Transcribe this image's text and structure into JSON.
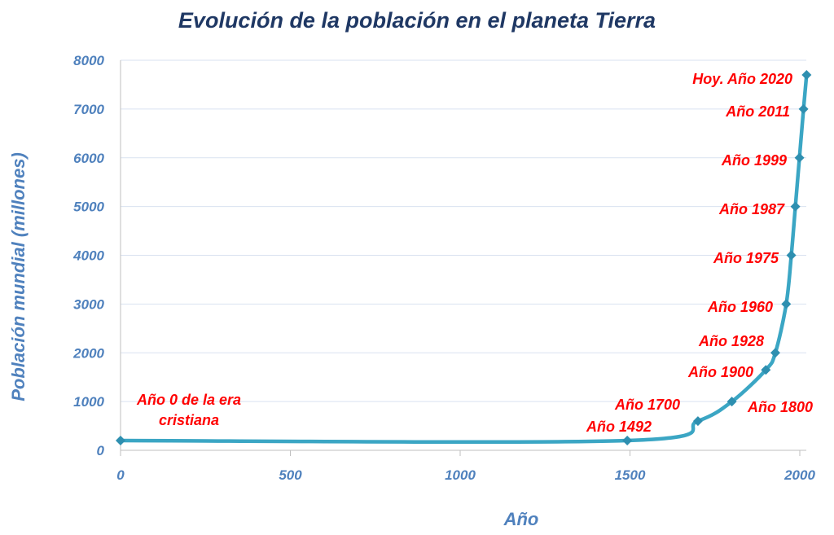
{
  "chart_data": {
    "type": "line",
    "title": "Evolución de la población en el planeta Tierra",
    "xlabel": "Año",
    "ylabel": "Población mundial (millones)",
    "xlim": [
      0,
      2000
    ],
    "ylim": [
      0,
      8000
    ],
    "xticks": [
      "0",
      "500",
      "1000",
      "1500",
      "2000"
    ],
    "yticks": [
      "0",
      "1000",
      "2000",
      "3000",
      "4000",
      "5000",
      "6000",
      "7000",
      "8000"
    ],
    "grid": "horizontal",
    "line_color": "#3BA6C4",
    "label_color": "#FF0000",
    "points": [
      {
        "x": 0,
        "y": 200,
        "label": [
          "Año 0 de la era",
          "cristiana"
        ]
      },
      {
        "x": 1492,
        "y": 200,
        "label": [
          "Año 1492"
        ]
      },
      {
        "x": 1700,
        "y": 600,
        "label": [
          "Año 1700"
        ]
      },
      {
        "x": 1800,
        "y": 1000,
        "label": [
          "Año 1800"
        ]
      },
      {
        "x": 1900,
        "y": 1650,
        "label": [
          "Año 1900"
        ]
      },
      {
        "x": 1928,
        "y": 2000,
        "label": [
          "Año 1928"
        ]
      },
      {
        "x": 1960,
        "y": 3000,
        "label": [
          "Año 1960"
        ]
      },
      {
        "x": 1975,
        "y": 4000,
        "label": [
          "Año 1975"
        ]
      },
      {
        "x": 1987,
        "y": 5000,
        "label": [
          "Año 1987"
        ]
      },
      {
        "x": 1999,
        "y": 6000,
        "label": [
          "Año 1999"
        ]
      },
      {
        "x": 2011,
        "y": 7000,
        "label": [
          "Año 2011"
        ]
      },
      {
        "x": 2020,
        "y": 7700,
        "label": [
          "Hoy. Año 2020"
        ]
      }
    ]
  }
}
